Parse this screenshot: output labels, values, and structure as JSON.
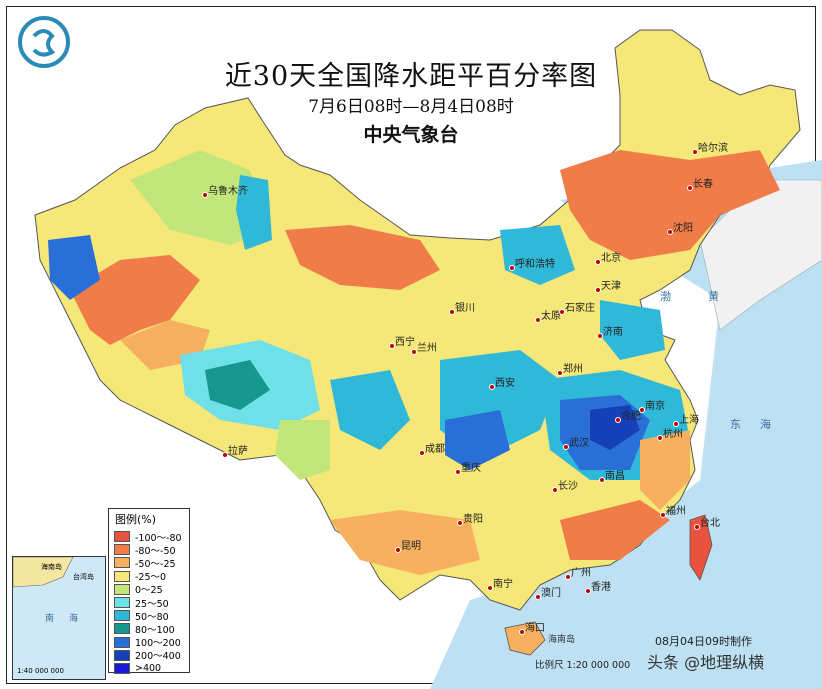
{
  "title": "近30天全国降水距平百分率图",
  "subtitle": "7月6日08时—8月4日08时",
  "agency": "中央气象台",
  "legend": {
    "title": "图例(%)",
    "items": [
      {
        "label": "-100～-80",
        "color": "#e8523f"
      },
      {
        "label": "-80～-50",
        "color": "#f07c4a"
      },
      {
        "label": "-50～-25",
        "color": "#f6b060"
      },
      {
        "label": "-25～0",
        "color": "#f5e878"
      },
      {
        "label": "0～25",
        "color": "#c3e67a"
      },
      {
        "label": "25～50",
        "color": "#6fe0e8"
      },
      {
        "label": "50～80",
        "color": "#30b8d8"
      },
      {
        "label": "80～100",
        "color": "#17988f"
      },
      {
        "label": "100～200",
        "color": "#2a6fd8"
      },
      {
        "label": "200～400",
        "color": "#1540b8"
      },
      {
        "label": ">400",
        "color": "#1a1ad8"
      }
    ]
  },
  "cities": [
    "乌鲁木齐",
    "哈尔滨",
    "长春",
    "沈阳",
    "呼和浩特",
    "北京",
    "天津",
    "银川",
    "太原",
    "石家庄",
    "济南",
    "西宁",
    "兰州",
    "西安",
    "郑州",
    "合肥",
    "南京",
    "上海",
    "杭州",
    "武汉",
    "拉萨",
    "成都",
    "重庆",
    "长沙",
    "南昌",
    "福州",
    "贵阳",
    "昆明",
    "台北",
    "南宁",
    "广州",
    "香港",
    "澳门",
    "海口"
  ],
  "seas": {
    "bohai": "渤",
    "yellow": "黄",
    "east": "东",
    "sea": "海",
    "island": "海南岛"
  },
  "inset": {
    "hainan": "海南岛",
    "taiwan": "台湾岛",
    "south": "南",
    "sea": "海",
    "scale": "1:40 000 000"
  },
  "footer": {
    "made": "08月04日09时制作",
    "scale": "比例尺 1:20 000 000"
  },
  "watermark": "头条 @地理纵横",
  "colors": {
    "ocean": "#bde1f3",
    "land_outside": "#f4f4f4"
  }
}
